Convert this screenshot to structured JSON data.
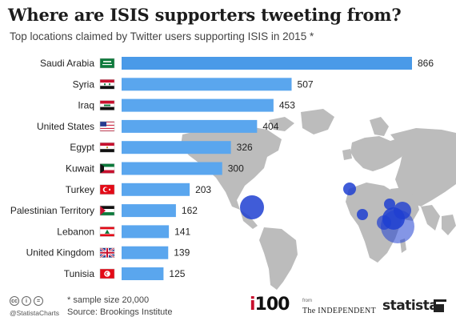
{
  "title": "Where are ISIS supporters tweeting from?",
  "subtitle": "Top locations claimed by Twitter users supporting ISIS in 2015 *",
  "footer": {
    "note": "* sample size 20,000",
    "source": "Source: Brookings Institute",
    "handle": "@StatistaCharts",
    "i100": "i100",
    "from": "from",
    "independent": "The INDEPENDENT",
    "statista": "statista"
  },
  "colors": {
    "bar": "#4a9ae8",
    "bar_light": "#5aa6ee",
    "map": "#bcbcbc",
    "bubble": "#1f3fd1"
  },
  "chart_data": {
    "type": "bar",
    "orientation": "horizontal",
    "title": "Where are ISIS supporters tweeting from?",
    "subtitle": "Top locations claimed by Twitter users supporting ISIS in 2015 *",
    "categories": [
      "Saudi Arabia",
      "Syria",
      "Iraq",
      "United States",
      "Egypt",
      "Kuwait",
      "Turkey",
      "Palestinian Territory",
      "Lebanon",
      "United Kingdom",
      "Tunisia"
    ],
    "values": [
      866,
      507,
      453,
      404,
      326,
      300,
      203,
      162,
      141,
      139,
      125
    ],
    "flags": [
      "flag-saudi-arabia",
      "flag-syria",
      "flag-iraq",
      "flag-united-states",
      "flag-egypt",
      "flag-kuwait",
      "flag-turkey",
      "flag-palestine",
      "flag-lebanon",
      "flag-united-kingdom",
      "flag-tunisia"
    ],
    "xlim": [
      0,
      866
    ],
    "grid": false,
    "background": "world map with bubbles"
  }
}
